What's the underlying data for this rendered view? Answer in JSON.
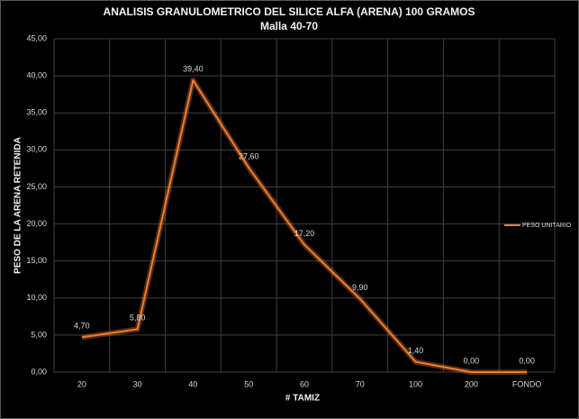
{
  "chart_data": {
    "type": "line",
    "title": "ANALISIS GRANULOMETRICO DEL SILICE ALFA (ARENA) 100 GRAMOS",
    "subtitle": "Malla 40-70",
    "x_label": "# TAMIZ",
    "y_label": "PESO DE LA ARENA RETENIDA",
    "categories": [
      "20",
      "30",
      "40",
      "50",
      "60",
      "70",
      "100",
      "200",
      "FONDO"
    ],
    "series": [
      {
        "name": "PESO UNITARIO",
        "color": "#ed7d31",
        "values": [
          4.7,
          5.8,
          39.4,
          27.6,
          17.2,
          9.9,
          1.4,
          0,
          0
        ],
        "value_labels": [
          "4,70",
          "5,80",
          "39,40",
          "27,60",
          "17,20",
          "9,90",
          "1,40",
          "0,00",
          "0,00"
        ]
      }
    ],
    "ylim": [
      0,
      45
    ],
    "yticks": [
      {
        "value": 0,
        "label": "0,00"
      },
      {
        "value": 5,
        "label": "5,00"
      },
      {
        "value": 10,
        "label": "10,00"
      },
      {
        "value": 15,
        "label": "15,00"
      },
      {
        "value": 20,
        "label": "20,00"
      },
      {
        "value": 25,
        "label": "25,00"
      },
      {
        "value": 30,
        "label": "30,00"
      },
      {
        "value": 35,
        "label": "35,00"
      },
      {
        "value": 40,
        "label": "40,00"
      },
      {
        "value": 45,
        "label": "45,00"
      }
    ],
    "grid": true,
    "legend": "right"
  }
}
